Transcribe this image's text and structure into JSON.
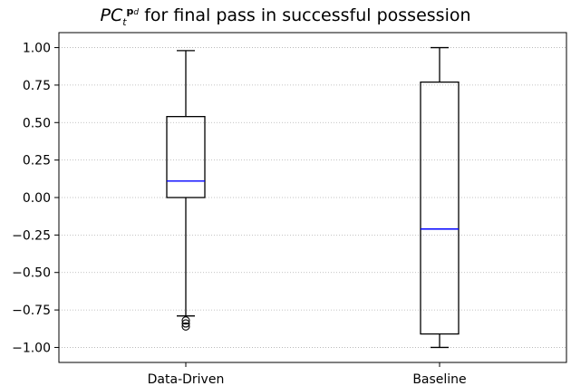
{
  "chart_data": {
    "type": "box",
    "title": {
      "symbol": "PC",
      "sub": "t",
      "sup_bold": "p",
      "sup_sup": "d",
      "text": "for final pass in successful possession"
    },
    "xlabel": "",
    "ylabel": "",
    "ylim": [
      -1.1,
      1.1
    ],
    "yticks": [
      "1.00",
      "0.75",
      "0.50",
      "0.25",
      "0.00",
      "−0.25",
      "−0.50",
      "−0.75",
      "−1.00"
    ],
    "ytick_values": [
      1.0,
      0.75,
      0.5,
      0.25,
      0.0,
      -0.25,
      -0.5,
      -0.75,
      -1.0
    ],
    "grid": "horizontal dotted",
    "categories": [
      "Data-Driven",
      "Baseline"
    ],
    "boxes": [
      {
        "name": "Data-Driven",
        "whisker_low": -0.79,
        "q1": 0.0,
        "median": 0.11,
        "q3": 0.54,
        "whisker_high": 0.98,
        "outliers": [
          -0.82,
          -0.84,
          -0.86
        ]
      },
      {
        "name": "Baseline",
        "whisker_low": -1.0,
        "q1": -0.91,
        "median": -0.21,
        "q3": 0.77,
        "whisker_high": 1.0,
        "outliers": []
      }
    ],
    "colors": {
      "box": "#000000",
      "median": "#0000ff",
      "grid": "#b0b0b0"
    }
  }
}
